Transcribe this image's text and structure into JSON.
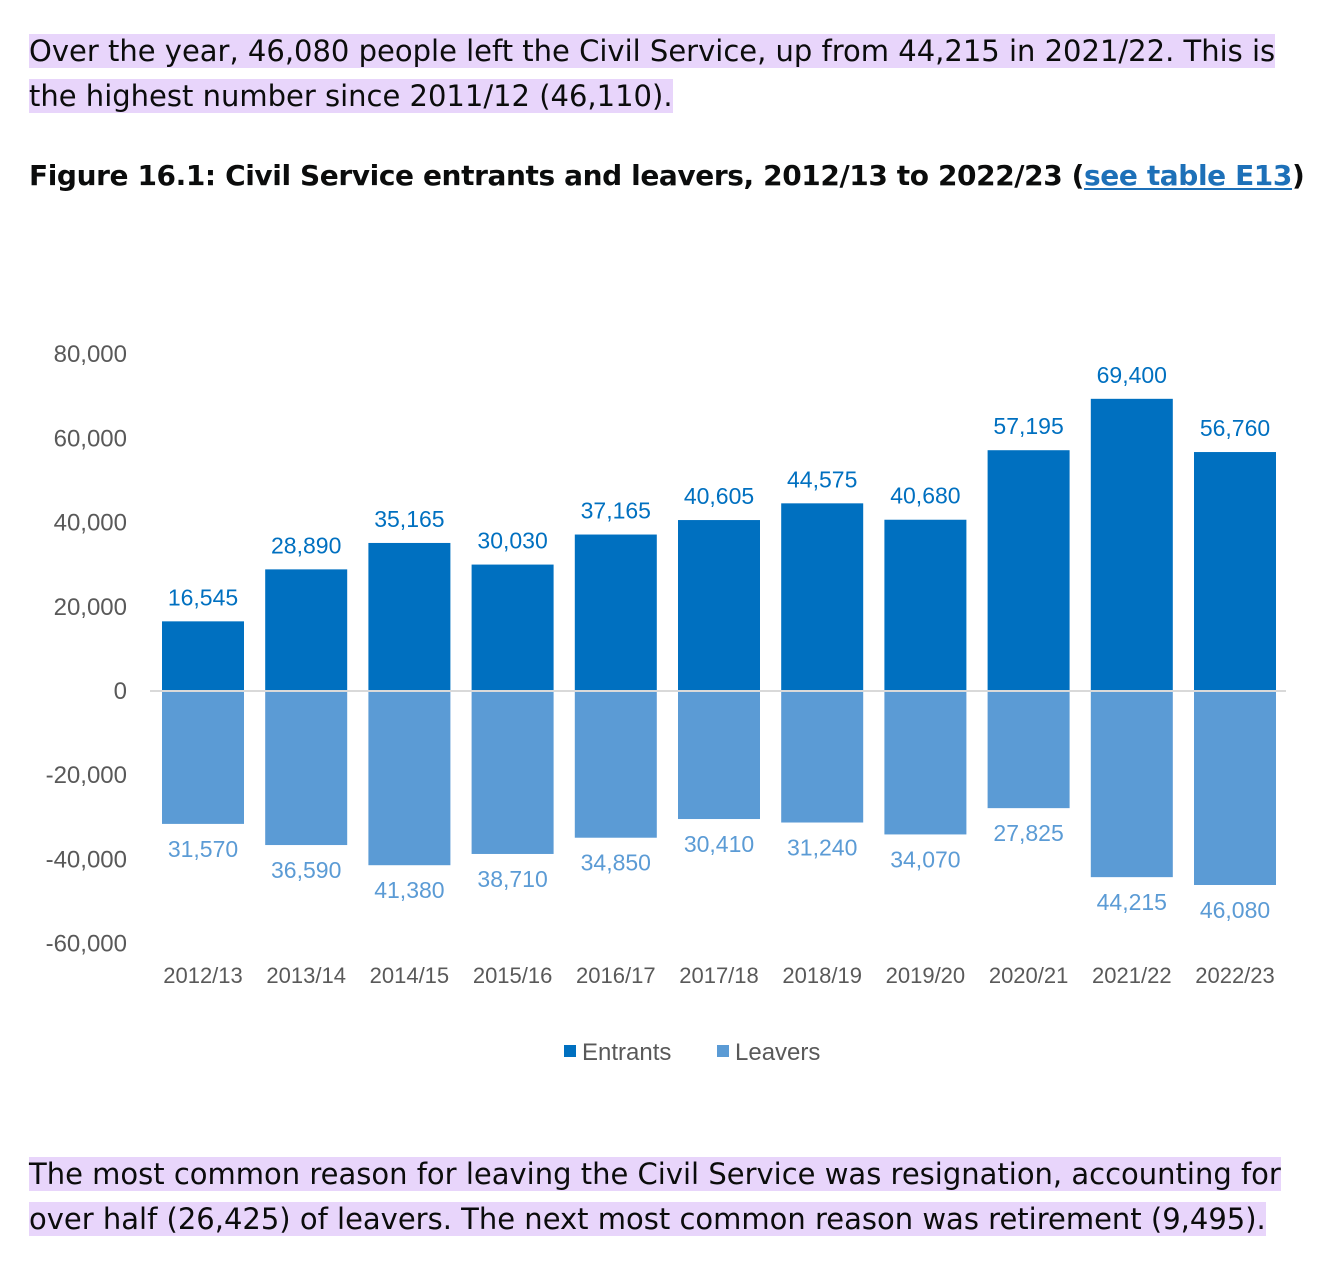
{
  "paragraphs": {
    "intro": "Over the year, 46,080 people left the Civil Service, up from 44,215 in 2021/22. This is the highest number since 2011/12 (46,110).",
    "outro": "The most common reason for leaving the Civil Service was resignation, accounting for over half (26,425) of leavers. The next most common reason was retirement (9,495)."
  },
  "figure": {
    "title_prefix": "Figure 16.1: Civil Service entrants and leavers, 2012/13 to 2022/23 (",
    "link_text": "see table E13",
    "title_suffix": ")"
  },
  "colors": {
    "entrants": "#0070c0",
    "leavers": "#5b9bd5",
    "axis_label": "#595959",
    "zero_line": "#d9d9d9",
    "highlight": "#e8d5fb",
    "link": "#1d70b8"
  },
  "chart_data": {
    "type": "bar",
    "stacked": true,
    "categories": [
      "2012/13",
      "2013/14",
      "2014/15",
      "2015/16",
      "2016/17",
      "2017/18",
      "2018/19",
      "2019/20",
      "2020/21",
      "2021/22",
      "2022/23"
    ],
    "series": [
      {
        "name": "Entrants",
        "values": [
          16545,
          28890,
          35165,
          30030,
          37165,
          40605,
          44575,
          40680,
          57195,
          69400,
          56760
        ],
        "labels": [
          "16,545",
          "28,890",
          "35,165",
          "30,030",
          "37,165",
          "40,605",
          "44,575",
          "40,680",
          "57,195",
          "69,400",
          "56,760"
        ]
      },
      {
        "name": "Leavers",
        "values": [
          -31570,
          -36590,
          -41380,
          -38710,
          -34850,
          -30410,
          -31240,
          -34070,
          -27825,
          -44215,
          -46080
        ],
        "labels": [
          "31,570",
          "36,590",
          "41,380",
          "38,710",
          "34,850",
          "30,410",
          "31,240",
          "34,070",
          "27,825",
          "44,215",
          "46,080"
        ]
      }
    ],
    "ylim": [
      -60000,
      80000
    ],
    "yticks": [
      80000,
      60000,
      40000,
      20000,
      0,
      -20000,
      -40000,
      -60000
    ],
    "ytick_labels": [
      "80,000",
      "60,000",
      "40,000",
      "20,000",
      "0",
      "-20,000",
      "-40,000",
      "-60,000"
    ],
    "xlabel": "",
    "ylabel": "",
    "grid": false,
    "legend": {
      "position": "bottom-center",
      "entries": [
        "Entrants",
        "Leavers"
      ]
    }
  }
}
